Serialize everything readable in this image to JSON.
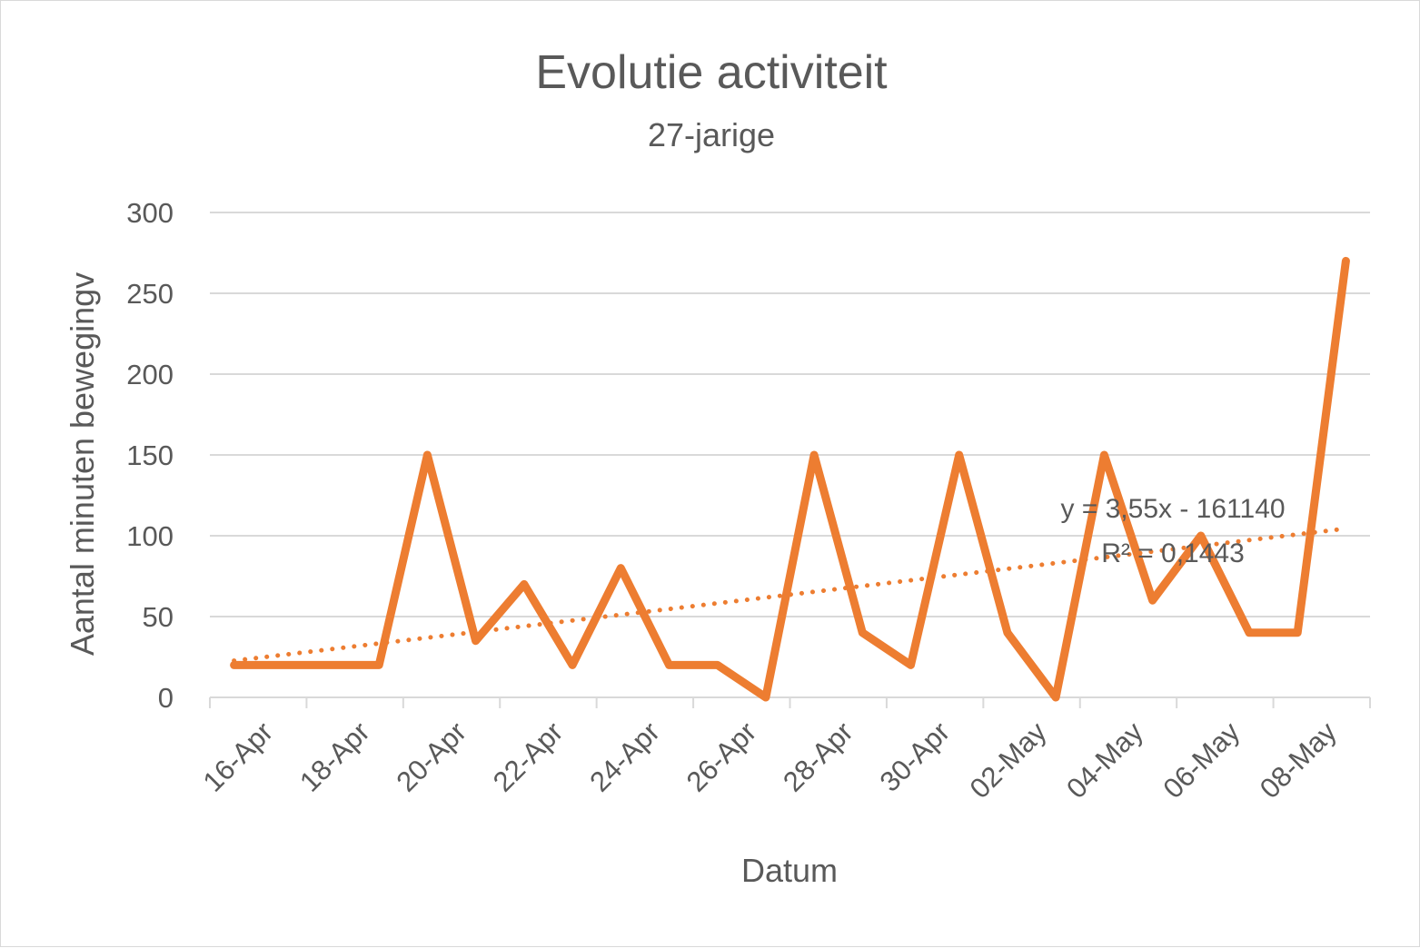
{
  "chart_data": {
    "type": "line",
    "title": "Evolutie activiteit",
    "subtitle": "27-jarige",
    "xlabel": "Datum",
    "ylabel": "Aantal minuten bewegingv",
    "ylim": [
      0,
      300
    ],
    "yticks": [
      "0",
      "50",
      "100",
      "150",
      "200",
      "250",
      "300"
    ],
    "x_tick_labels": [
      "16-Apr",
      "18-Apr",
      "20-Apr",
      "22-Apr",
      "24-Apr",
      "26-Apr",
      "28-Apr",
      "30-Apr",
      "02-May",
      "04-May",
      "06-May",
      "08-May"
    ],
    "grid": true,
    "x": [
      "16-Apr",
      "17-Apr",
      "18-Apr",
      "19-Apr",
      "20-Apr",
      "21-Apr",
      "22-Apr",
      "23-Apr",
      "24-Apr",
      "25-Apr",
      "26-Apr",
      "27-Apr",
      "28-Apr",
      "29-Apr",
      "30-Apr",
      "01-May",
      "02-May",
      "03-May",
      "04-May",
      "05-May",
      "06-May",
      "07-May",
      "08-May",
      "09-May"
    ],
    "series": [
      {
        "values": [
          20,
          20,
          20,
          20,
          150,
          35,
          70,
          20,
          80,
          20,
          20,
          0,
          150,
          40,
          20,
          150,
          40,
          0,
          150,
          60,
          100,
          40,
          40,
          270
        ],
        "color": "#ED7D31"
      }
    ],
    "trendline": {
      "type": "linear",
      "color": "#ED7D31",
      "equation": "y = 3,55x - 161140",
      "r_squared": "R² = 0,1443",
      "start_value": 22.7,
      "end_value": 104.4
    }
  }
}
